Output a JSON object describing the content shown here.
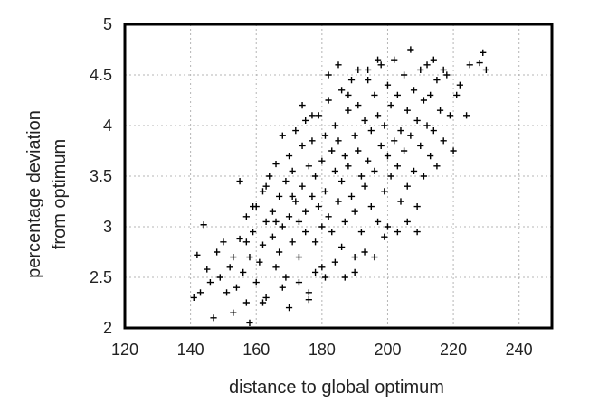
{
  "chart_data": {
    "type": "scatter",
    "title": "",
    "xlabel": "distance to global optimum",
    "ylabel_lines": [
      "percentage deviation",
      "from optimum"
    ],
    "xlim": [
      120,
      250
    ],
    "ylim": [
      2,
      5
    ],
    "x_ticks": [
      120,
      140,
      160,
      180,
      200,
      220,
      240
    ],
    "y_ticks": [
      2,
      2.5,
      3,
      3.5,
      4,
      4.5,
      5
    ],
    "y_tick_labels": [
      "2",
      "2.5",
      "3",
      "3.5",
      "4",
      "4.5",
      "5"
    ],
    "grid": true,
    "marker": "+",
    "marker_color": "#000000",
    "series": [
      {
        "points": [
          [
            141,
            2.3
          ],
          [
            142,
            2.72
          ],
          [
            143,
            2.35
          ],
          [
            144,
            3.02
          ],
          [
            145,
            2.58
          ],
          [
            146,
            2.45
          ],
          [
            147,
            2.1
          ],
          [
            148,
            2.75
          ],
          [
            149,
            2.5
          ],
          [
            150,
            2.85
          ],
          [
            151,
            2.35
          ],
          [
            152,
            2.6
          ],
          [
            153,
            2.15
          ],
          [
            154,
            2.4
          ],
          [
            155,
            3.45
          ],
          [
            155,
            2.88
          ],
          [
            156,
            2.55
          ],
          [
            157,
            2.25
          ],
          [
            157,
            3.1
          ],
          [
            158,
            2.7
          ],
          [
            158,
            2.05
          ],
          [
            159,
            2.95
          ],
          [
            160,
            3.2
          ],
          [
            160,
            2.45
          ],
          [
            161,
            2.65
          ],
          [
            162,
            3.35
          ],
          [
            162,
            2.82
          ],
          [
            163,
            3.05
          ],
          [
            163,
            2.3
          ],
          [
            164,
            3.5
          ],
          [
            165,
            2.9
          ],
          [
            165,
            3.15
          ],
          [
            166,
            2.6
          ],
          [
            166,
            3.62
          ],
          [
            167,
            3.3
          ],
          [
            167,
            2.75
          ],
          [
            168,
            3.0
          ],
          [
            168,
            3.9
          ],
          [
            169,
            3.45
          ],
          [
            169,
            2.5
          ],
          [
            170,
            3.7
          ],
          [
            170,
            3.1
          ],
          [
            171,
            2.85
          ],
          [
            171,
            3.55
          ],
          [
            172,
            3.25
          ],
          [
            172,
            3.95
          ],
          [
            173,
            3.05
          ],
          [
            173,
            2.7
          ],
          [
            174,
            3.8
          ],
          [
            174,
            3.4
          ],
          [
            175,
            3.15
          ],
          [
            175,
            2.95
          ],
          [
            175,
            4.05
          ],
          [
            176,
            3.6
          ],
          [
            176,
            2.35
          ],
          [
            177,
            3.3
          ],
          [
            177,
            3.85
          ],
          [
            178,
            3.5
          ],
          [
            178,
            2.85
          ],
          [
            179,
            4.1
          ],
          [
            179,
            3.2
          ],
          [
            180,
            3.65
          ],
          [
            180,
            3.0
          ],
          [
            180,
            2.6
          ],
          [
            181,
            3.9
          ],
          [
            181,
            3.35
          ],
          [
            182,
            4.25
          ],
          [
            182,
            3.1
          ],
          [
            183,
            3.75
          ],
          [
            183,
            2.95
          ],
          [
            184,
            3.55
          ],
          [
            184,
            4.0
          ],
          [
            185,
            3.25
          ],
          [
            185,
            3.85
          ],
          [
            186,
            4.35
          ],
          [
            186,
            3.45
          ],
          [
            186,
            2.8
          ],
          [
            187,
            3.7
          ],
          [
            187,
            3.05
          ],
          [
            188,
            4.15
          ],
          [
            188,
            3.6
          ],
          [
            189,
            3.3
          ],
          [
            189,
            4.45
          ],
          [
            190,
            3.9
          ],
          [
            190,
            3.15
          ],
          [
            190,
            2.7
          ],
          [
            191,
            3.75
          ],
          [
            191,
            4.2
          ],
          [
            192,
            3.5
          ],
          [
            192,
            2.95
          ],
          [
            193,
            4.05
          ],
          [
            193,
            3.4
          ],
          [
            194,
            4.55
          ],
          [
            194,
            3.65
          ],
          [
            195,
            3.2
          ],
          [
            195,
            3.95
          ],
          [
            196,
            4.3
          ],
          [
            196,
            3.55
          ],
          [
            197,
            3.05
          ],
          [
            197,
            4.1
          ],
          [
            198,
            3.8
          ],
          [
            198,
            4.6
          ],
          [
            199,
            3.35
          ],
          [
            199,
            4.0
          ],
          [
            200,
            3.7
          ],
          [
            200,
            4.4
          ],
          [
            200,
            3.0
          ],
          [
            201,
            4.2
          ],
          [
            201,
            3.5
          ],
          [
            202,
            3.85
          ],
          [
            202,
            4.65
          ],
          [
            203,
            3.6
          ],
          [
            203,
            4.3
          ],
          [
            204,
            3.25
          ],
          [
            204,
            3.95
          ],
          [
            205,
            4.5
          ],
          [
            205,
            3.75
          ],
          [
            206,
            4.15
          ],
          [
            206,
            3.4
          ],
          [
            207,
            4.75
          ],
          [
            207,
            3.9
          ],
          [
            208,
            3.55
          ],
          [
            208,
            4.35
          ],
          [
            209,
            4.05
          ],
          [
            209,
            3.2
          ],
          [
            210,
            4.55
          ],
          [
            210,
            3.8
          ],
          [
            211,
            4.25
          ],
          [
            211,
            3.5
          ],
          [
            212,
            4.0
          ],
          [
            212,
            4.6
          ],
          [
            213,
            3.7
          ],
          [
            213,
            4.3
          ],
          [
            214,
            3.95
          ],
          [
            215,
            4.45
          ],
          [
            215,
            3.6
          ],
          [
            216,
            4.15
          ],
          [
            217,
            3.85
          ],
          [
            218,
            4.5
          ],
          [
            219,
            4.1
          ],
          [
            220,
            3.75
          ],
          [
            221,
            4.3
          ],
          [
            222,
            4.4
          ],
          [
            224,
            4.1
          ],
          [
            225,
            4.6
          ],
          [
            228,
            4.62
          ],
          [
            229,
            4.72
          ],
          [
            230,
            4.55
          ],
          [
            214,
            4.65
          ],
          [
            217,
            4.55
          ],
          [
            162,
            2.25
          ],
          [
            168,
            2.4
          ],
          [
            170,
            2.2
          ],
          [
            173,
            2.45
          ],
          [
            176,
            2.28
          ],
          [
            178,
            2.55
          ],
          [
            181,
            2.5
          ],
          [
            184,
            2.65
          ],
          [
            187,
            2.5
          ],
          [
            190,
            2.55
          ],
          [
            193,
            2.75
          ],
          [
            196,
            2.7
          ],
          [
            199,
            2.9
          ],
          [
            203,
            2.95
          ],
          [
            206,
            3.05
          ],
          [
            209,
            2.95
          ],
          [
            182,
            4.5
          ],
          [
            185,
            4.6
          ],
          [
            188,
            4.3
          ],
          [
            191,
            4.55
          ],
          [
            194,
            4.45
          ],
          [
            197,
            4.65
          ],
          [
            174,
            4.2
          ],
          [
            177,
            4.1
          ],
          [
            171,
            3.3
          ],
          [
            166,
            3.05
          ],
          [
            163,
            3.4
          ],
          [
            159,
            3.2
          ],
          [
            157,
            2.85
          ],
          [
            153,
            2.7
          ]
        ]
      }
    ]
  }
}
